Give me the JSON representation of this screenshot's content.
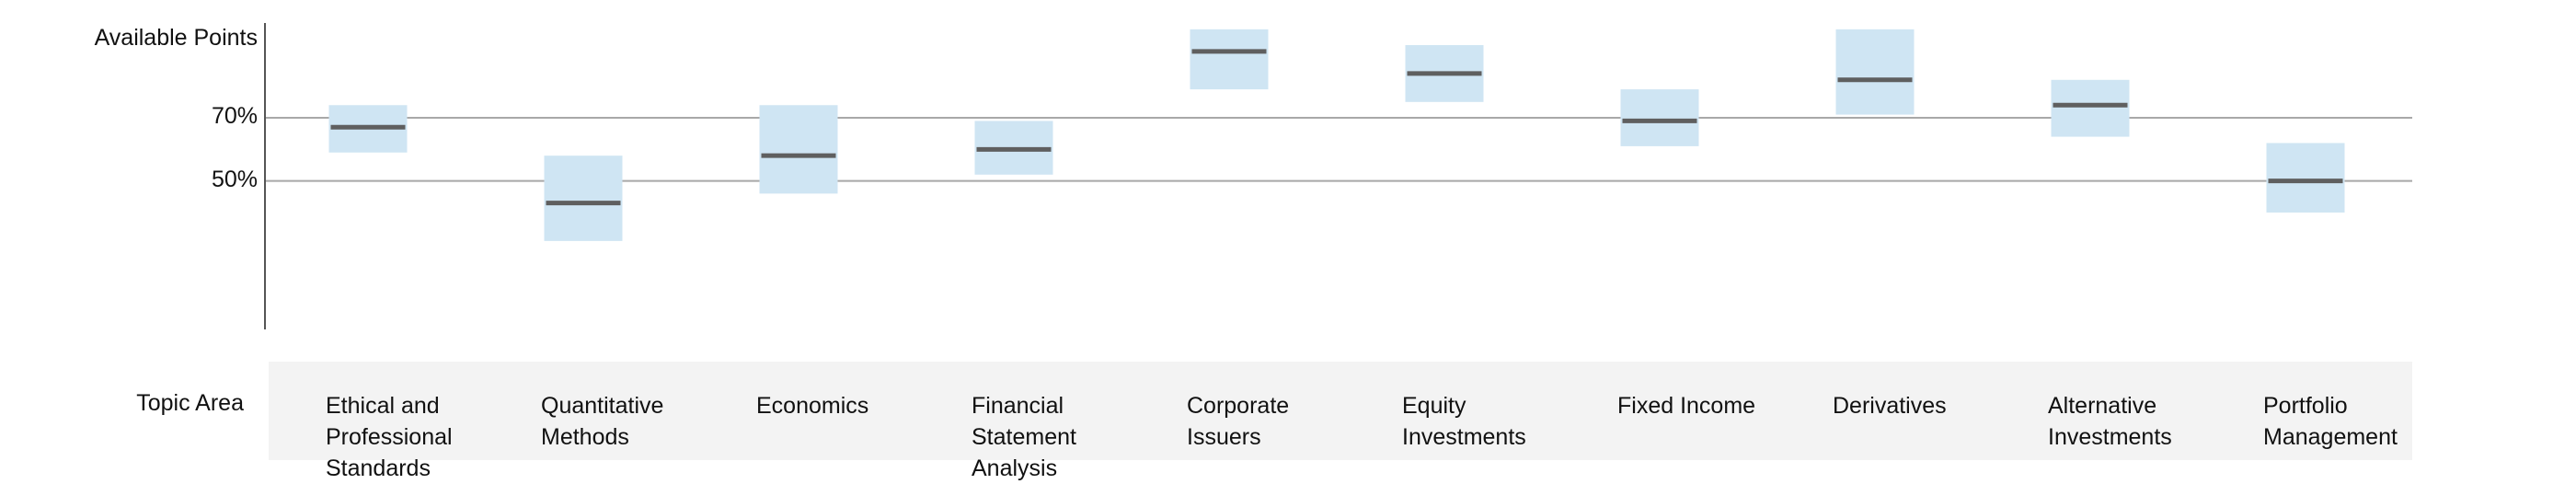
{
  "chart_data": {
    "type": "range",
    "y_axis_title": "Available Points",
    "y_ticks": [
      {
        "label": "70%",
        "value": 70
      },
      {
        "label": "50%",
        "value": 50
      }
    ],
    "ylim": [
      3,
      100
    ],
    "x_axis_title": "Topic Area",
    "colors": {
      "range_fill": "#cfe5f3",
      "median_line": "#5f5f5f",
      "gridline": "#a8a8a8",
      "axis": "#555555"
    },
    "categories": [
      {
        "label": "Ethical and\nProfessional\nStandards",
        "low": 59,
        "high": 74,
        "mid": 67
      },
      {
        "label": "Quantitative\nMethods",
        "low": 31,
        "high": 58,
        "mid": 43
      },
      {
        "label": "Economics",
        "low": 46,
        "high": 74,
        "mid": 58
      },
      {
        "label": "Financial\nStatement\nAnalysis",
        "low": 52,
        "high": 69,
        "mid": 60
      },
      {
        "label": "Corporate\nIssuers",
        "low": 79,
        "high": 98,
        "mid": 91
      },
      {
        "label": "Equity\nInvestments",
        "low": 75,
        "high": 93,
        "mid": 84
      },
      {
        "label": "Fixed Income",
        "low": 61,
        "high": 79,
        "mid": 69
      },
      {
        "label": "Derivatives",
        "low": 71,
        "high": 98,
        "mid": 82
      },
      {
        "label": "Alternative\nInvestments",
        "low": 64,
        "high": 82,
        "mid": 74
      },
      {
        "label": "Portfolio\nManagement",
        "low": 40,
        "high": 62,
        "mid": 50
      }
    ]
  }
}
